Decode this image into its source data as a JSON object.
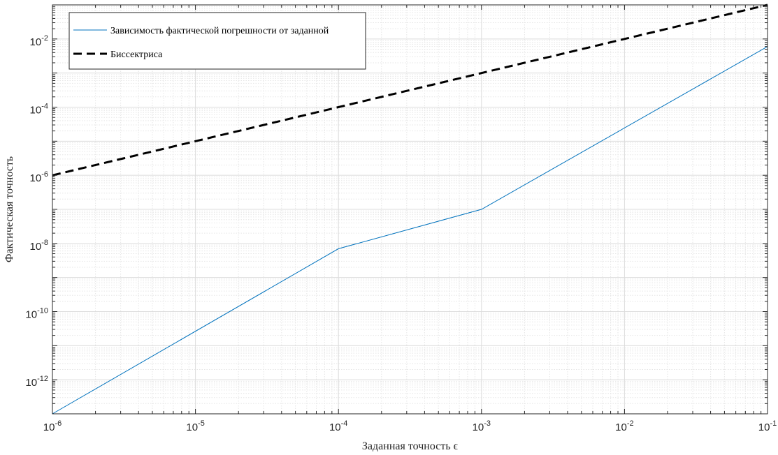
{
  "chart_data": {
    "type": "line",
    "xscale": "log",
    "yscale": "log",
    "xlim": [
      1e-06,
      0.1
    ],
    "ylim": [
      1e-13,
      0.1
    ],
    "xlabel": "Заданная точность ϵ",
    "ylabel": "Фактическая точность",
    "grid": true,
    "minor_grid": true,
    "legend_position": "top-left",
    "x_ticks": [
      {
        "value": 1e-06,
        "base": "10",
        "exp": "-6"
      },
      {
        "value": 1e-05,
        "base": "10",
        "exp": "-5"
      },
      {
        "value": 0.0001,
        "base": "10",
        "exp": "-4"
      },
      {
        "value": 0.001,
        "base": "10",
        "exp": "-3"
      },
      {
        "value": 0.01,
        "base": "10",
        "exp": "-2"
      },
      {
        "value": 0.1,
        "base": "10",
        "exp": "-1"
      }
    ],
    "y_ticks": [
      {
        "value": 1e-12,
        "base": "10",
        "exp": "-12"
      },
      {
        "value": 1e-10,
        "base": "10",
        "exp": "-10"
      },
      {
        "value": 1e-08,
        "base": "10",
        "exp": "-8"
      },
      {
        "value": 1e-06,
        "base": "10",
        "exp": "-6"
      },
      {
        "value": 0.0001,
        "base": "10",
        "exp": "-4"
      },
      {
        "value": 0.01,
        "base": "10",
        "exp": "-2"
      }
    ],
    "series": [
      {
        "name": "Зависимость фактической погрешности от заданной",
        "color": "#0072BD",
        "style": "solid",
        "x": [
          1e-06,
          0.0001,
          0.001,
          0.1
        ],
        "y": [
          1e-13,
          7e-09,
          1e-07,
          0.006
        ]
      },
      {
        "name": "Биссектриса",
        "color": "#000000",
        "style": "dashed",
        "x": [
          1e-06,
          0.1
        ],
        "y": [
          1e-06,
          0.1
        ]
      }
    ]
  }
}
